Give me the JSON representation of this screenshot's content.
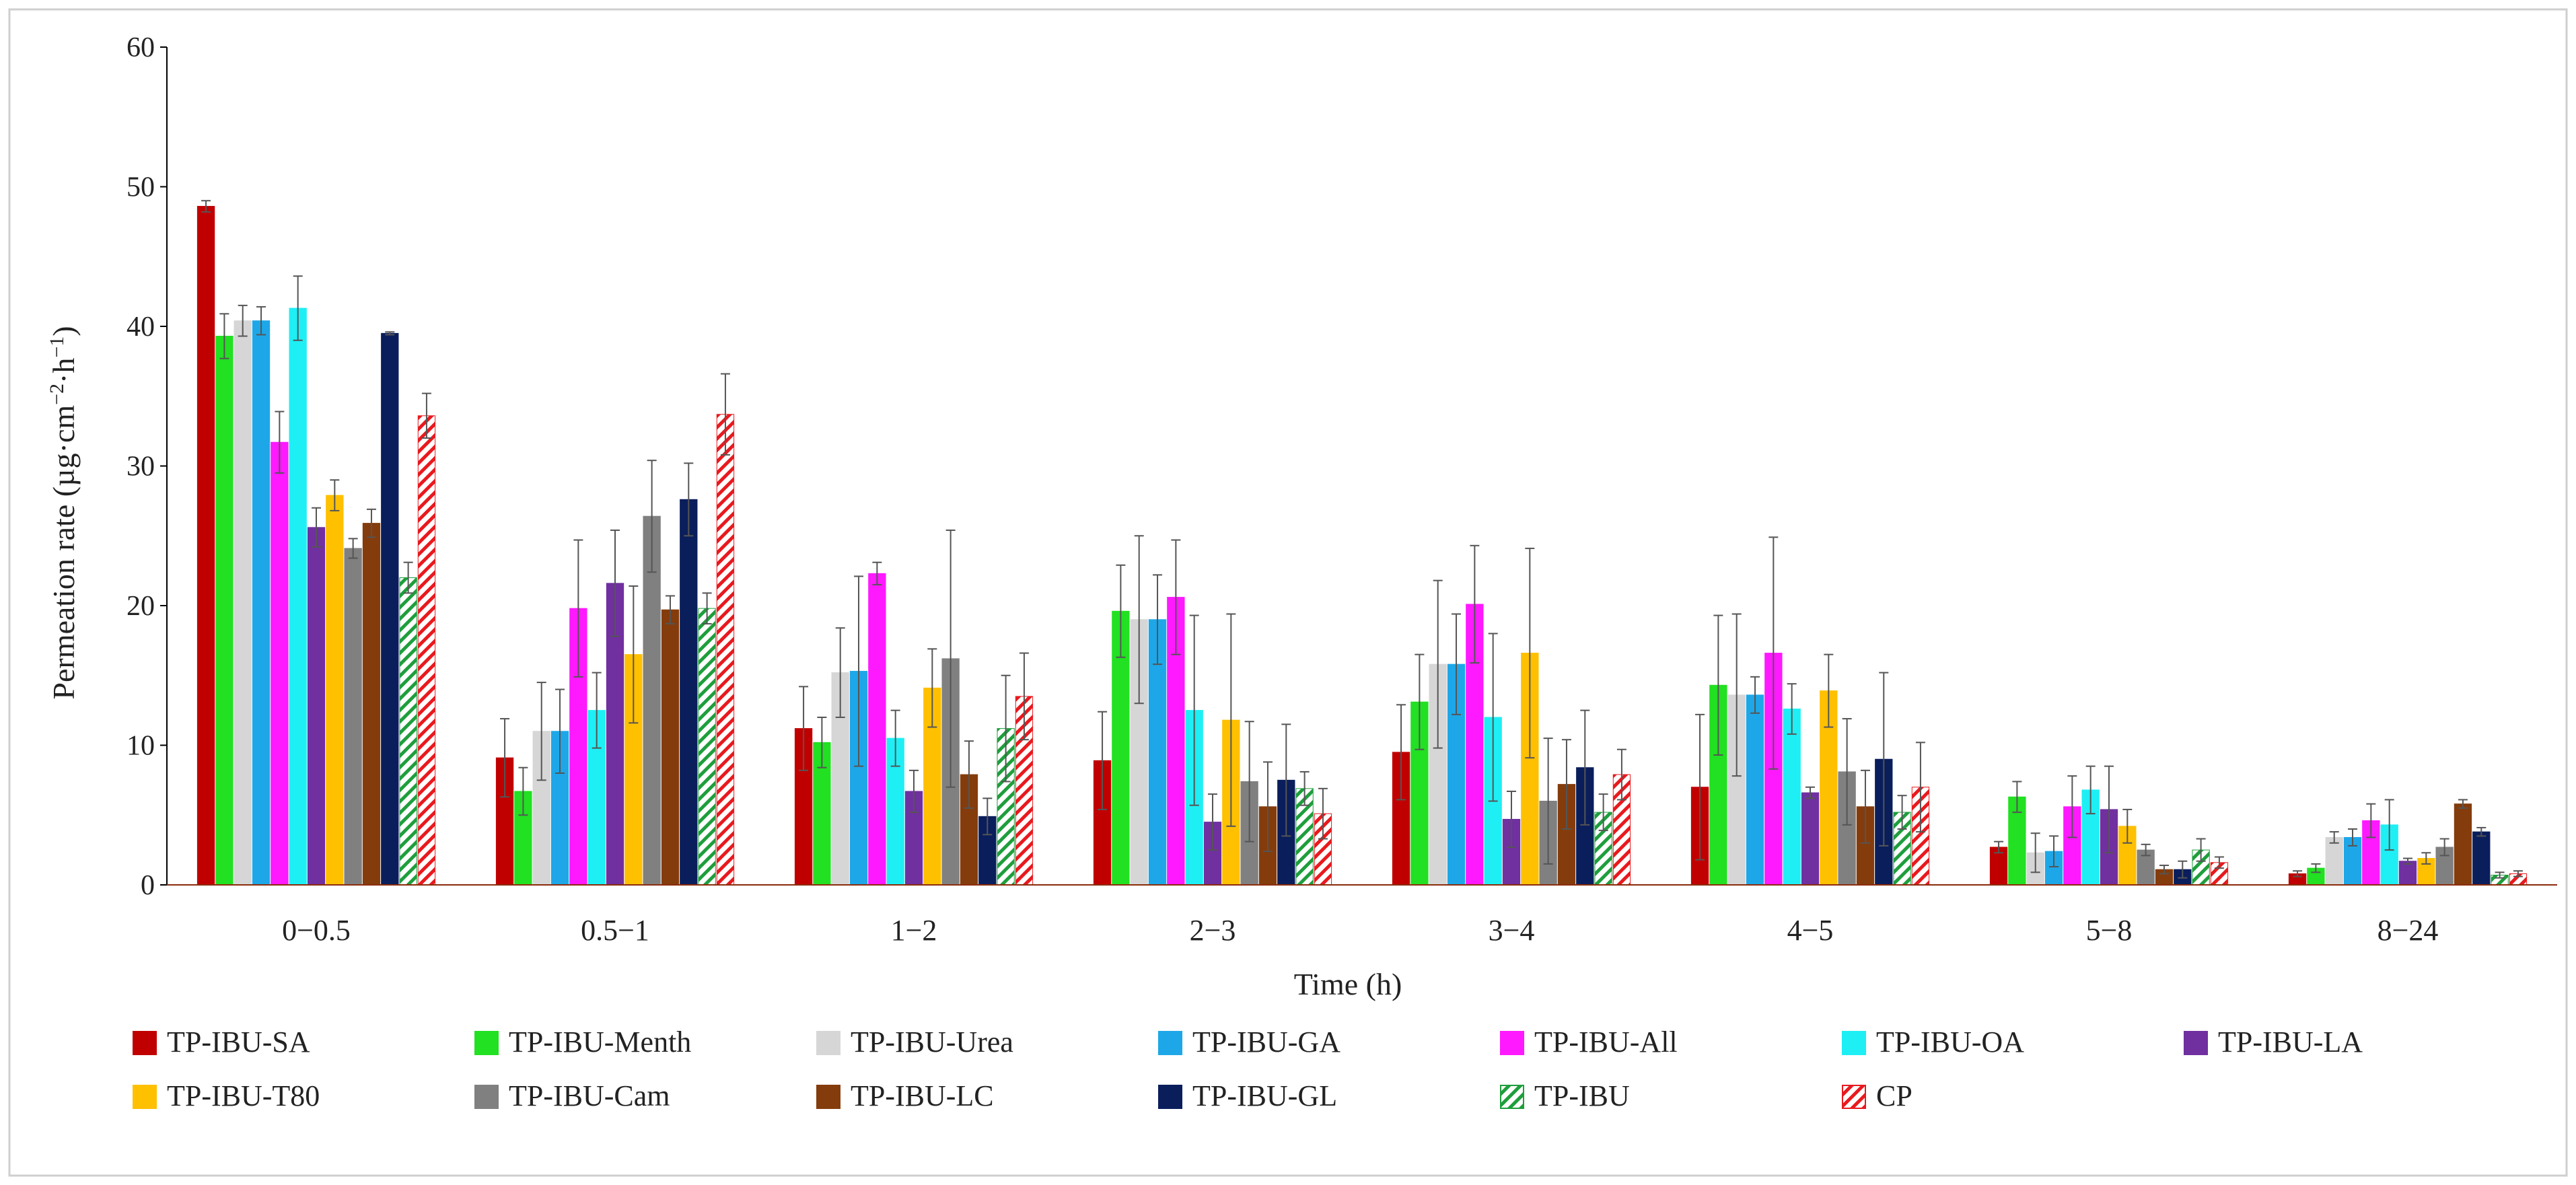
{
  "chart_data": {
    "type": "bar",
    "title": "",
    "xlabel": "Time (h)",
    "ylabel": "Permeation rate (µg·cm",
    "ylabel_sup1": "−2",
    "ylabel_mid": "·h",
    "ylabel_sup2": "−1",
    "ylabel_end": ")",
    "ylim": [
      0,
      60
    ],
    "yticks": [
      0,
      10,
      20,
      30,
      40,
      50,
      60
    ],
    "ytick_labels": [
      "0",
      "10",
      "20",
      "30",
      "40",
      "50",
      "60"
    ],
    "grid": false,
    "legend_position": "bottom",
    "categories": [
      "0−0.5",
      "0.5−1",
      "1−2",
      "2−3",
      "3−4",
      "4−5",
      "5−8",
      "8−24"
    ],
    "series": [
      {
        "name": "TP-IBU-SA",
        "color": "#C00000",
        "pattern": "solid",
        "values": [
          48.6,
          9.1,
          11.2,
          8.9,
          9.5,
          7.0,
          2.7,
          0.8
        ],
        "errors": [
          0.4,
          2.8,
          3.0,
          3.5,
          3.4,
          5.2,
          0.4,
          0.2
        ]
      },
      {
        "name": "TP-IBU-Menth",
        "color": "#22E022",
        "pattern": "solid",
        "values": [
          39.3,
          6.7,
          10.2,
          19.6,
          13.1,
          14.3,
          6.3,
          1.2
        ],
        "errors": [
          1.6,
          1.7,
          1.8,
          3.3,
          3.4,
          5.0,
          1.1,
          0.3
        ]
      },
      {
        "name": "TP-IBU-Urea",
        "color": "#D6D6D6",
        "pattern": "solid",
        "values": [
          40.4,
          11.0,
          15.2,
          19.0,
          15.8,
          13.6,
          2.3,
          3.4
        ],
        "errors": [
          1.1,
          3.5,
          3.2,
          6.0,
          6.0,
          5.8,
          1.4,
          0.4
        ]
      },
      {
        "name": "TP-IBU-GA",
        "color": "#1EA7E8",
        "pattern": "solid",
        "values": [
          40.4,
          11.0,
          15.3,
          19.0,
          15.8,
          13.6,
          2.4,
          3.4
        ],
        "errors": [
          1.0,
          3.0,
          6.8,
          3.2,
          3.6,
          1.3,
          1.1,
          0.6
        ]
      },
      {
        "name": "TP-IBU-All",
        "color": "#FF19FF",
        "pattern": "solid",
        "values": [
          31.7,
          19.8,
          22.3,
          20.6,
          20.1,
          16.6,
          5.6,
          4.6
        ],
        "errors": [
          2.2,
          4.9,
          0.8,
          4.1,
          4.2,
          8.3,
          2.2,
          1.2
        ]
      },
      {
        "name": "TP-IBU-OA",
        "color": "#1EEFF5",
        "pattern": "solid",
        "values": [
          41.3,
          12.5,
          10.5,
          12.5,
          12.0,
          12.6,
          6.8,
          4.3
        ],
        "errors": [
          2.3,
          2.7,
          2.0,
          6.8,
          6.0,
          1.8,
          1.7,
          1.8
        ]
      },
      {
        "name": "TP-IBU-LA",
        "color": "#7030A0",
        "pattern": "solid",
        "values": [
          25.6,
          21.6,
          6.7,
          4.5,
          4.7,
          6.6,
          5.4,
          1.7
        ],
        "errors": [
          1.4,
          3.8,
          1.5,
          2.0,
          2.0,
          0.4,
          3.1,
          0.2
        ]
      },
      {
        "name": "TP-IBU-T80",
        "color": "#FFC000",
        "pattern": "solid",
        "values": [
          27.9,
          16.5,
          14.1,
          11.8,
          16.6,
          13.9,
          4.2,
          1.9
        ],
        "errors": [
          1.1,
          4.9,
          2.8,
          7.6,
          7.5,
          2.6,
          1.2,
          0.4
        ]
      },
      {
        "name": "TP-IBU-Cam",
        "color": "#808080",
        "pattern": "solid",
        "values": [
          24.1,
          26.4,
          16.2,
          7.4,
          6.0,
          8.1,
          2.5,
          2.7
        ],
        "errors": [
          0.7,
          4.0,
          9.2,
          4.3,
          4.5,
          3.8,
          0.4,
          0.6
        ]
      },
      {
        "name": "TP-IBU-LC",
        "color": "#843C0C",
        "pattern": "solid",
        "values": [
          25.9,
          19.7,
          7.9,
          5.6,
          7.2,
          5.6,
          1.1,
          5.8
        ],
        "errors": [
          1.0,
          1.0,
          2.4,
          3.2,
          3.2,
          2.6,
          0.3,
          0.3
        ]
      },
      {
        "name": "TP-IBU-GL",
        "color": "#0A1E5C",
        "pattern": "solid",
        "values": [
          39.5,
          27.6,
          4.9,
          7.5,
          8.4,
          9.0,
          1.1,
          3.8
        ],
        "errors": [
          0.1,
          2.6,
          1.3,
          4.0,
          4.1,
          6.2,
          0.6,
          0.3
        ]
      },
      {
        "name": "TP-IBU",
        "color": "#1E9E3C",
        "pattern": "hatch",
        "values": [
          22.0,
          19.8,
          11.2,
          6.9,
          5.2,
          5.2,
          2.5,
          0.7
        ],
        "errors": [
          1.1,
          1.1,
          3.8,
          1.2,
          1.3,
          1.2,
          0.8,
          0.2
        ]
      },
      {
        "name": "CP",
        "color": "#E8191E",
        "pattern": "hatch",
        "values": [
          33.6,
          33.7,
          13.5,
          5.1,
          7.9,
          7.0,
          1.6,
          0.8
        ],
        "errors": [
          1.6,
          2.9,
          3.1,
          1.8,
          1.8,
          3.2,
          0.4,
          0.2
        ]
      }
    ]
  }
}
